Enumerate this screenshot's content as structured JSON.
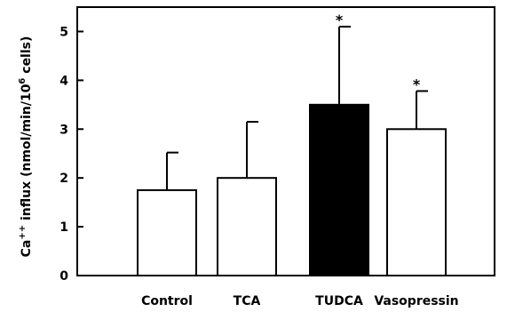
{
  "chart_data": {
    "type": "bar",
    "categories": [
      "Control",
      "TCA",
      "TUDCA",
      "Vasopressin"
    ],
    "values": [
      1.75,
      2.0,
      3.5,
      3.0
    ],
    "errors": [
      0.77,
      1.15,
      1.6,
      0.78
    ],
    "significant": [
      false,
      false,
      true,
      true
    ],
    "significance_marker": "*",
    "bar_colors": [
      "#ffffff",
      "#ffffff",
      "#000000",
      "#ffffff"
    ],
    "ylabel_parts": [
      "Ca",
      "++",
      " influx (nmol/min/10",
      "6",
      " cells)"
    ],
    "xlabel": "",
    "ylim": [
      0,
      5.5
    ],
    "yticks": [
      0,
      1,
      2,
      3,
      4,
      5
    ],
    "grid": false
  }
}
